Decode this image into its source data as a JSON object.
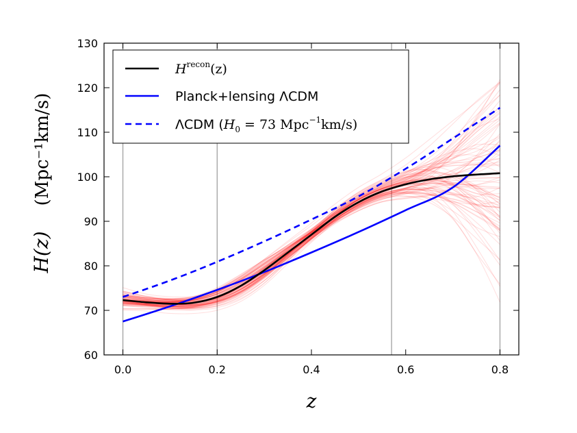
{
  "chart_data": {
    "type": "line",
    "xlabel": "z",
    "ylabel": "H(z)",
    "ylabel_units": "(Mpc⁻¹km/s)",
    "xlim": [
      -0.04,
      0.84
    ],
    "ylim": [
      60,
      130
    ],
    "xticks": [
      0.0,
      0.2,
      0.4,
      0.6,
      0.8
    ],
    "xtick_labels": [
      "0.0",
      "0.2",
      "0.4",
      "0.6",
      "0.8"
    ],
    "yticks": [
      60,
      70,
      80,
      90,
      100,
      110,
      120,
      130
    ],
    "ytick_labels": [
      "60",
      "70",
      "80",
      "90",
      "100",
      "110",
      "120",
      "130"
    ],
    "vertical_lines_x": [
      0.0,
      0.2,
      0.57,
      0.8
    ],
    "legend_position": "top-left",
    "series": [
      {
        "name": "H^recon(z)",
        "legend_main": "H",
        "legend_sup": "recon",
        "legend_tail": "(z)",
        "color": "#000000",
        "style": "solid",
        "x": [
          0.0,
          0.05,
          0.1,
          0.15,
          0.2,
          0.25,
          0.3,
          0.35,
          0.4,
          0.45,
          0.5,
          0.55,
          0.6,
          0.65,
          0.7,
          0.75,
          0.8
        ],
        "y": [
          72.3,
          71.8,
          71.5,
          71.7,
          73.0,
          75.5,
          79.0,
          83.0,
          87.0,
          91.0,
          94.3,
          96.7,
          98.3,
          99.4,
          100.1,
          100.5,
          100.8
        ]
      },
      {
        "name": "Planck+lensing ΛCDM",
        "color": "#0000ff",
        "style": "solid",
        "x": [
          0.0,
          0.1,
          0.2,
          0.3,
          0.4,
          0.5,
          0.6,
          0.7,
          0.8
        ],
        "y": [
          67.5,
          70.9,
          74.6,
          78.6,
          83.0,
          87.6,
          92.5,
          97.6,
          107.0
        ]
      },
      {
        "name": "ΛCDM (H0 = 73 Mpc⁻¹km/s)",
        "legend_main": "ΛCDM (",
        "legend_h": "H",
        "legend_sub": "0",
        "legend_tail": " = 73 Mpc",
        "legend_exp": "−1",
        "legend_end": "km/s)",
        "color": "#0000ff",
        "style": "dashed",
        "x": [
          0.0,
          0.1,
          0.2,
          0.3,
          0.4,
          0.5,
          0.6,
          0.7,
          0.8
        ],
        "y": [
          73.0,
          76.7,
          80.9,
          85.5,
          90.4,
          95.6,
          101.8,
          108.6,
          115.5
        ]
      }
    ],
    "reconstruction_band": {
      "color": "#ff0000",
      "sample_count": 90,
      "x": [
        0.0,
        0.05,
        0.1,
        0.15,
        0.2,
        0.25,
        0.3,
        0.35,
        0.4,
        0.45,
        0.5,
        0.55,
        0.6,
        0.65,
        0.7,
        0.75,
        0.8
      ],
      "spread": [
        2.2,
        1.6,
        1.5,
        1.5,
        1.8,
        2.2,
        2.4,
        2.2,
        2.0,
        2.0,
        2.2,
        2.6,
        4.0,
        6.5,
        10.0,
        14.5,
        20.0
      ]
    }
  }
}
